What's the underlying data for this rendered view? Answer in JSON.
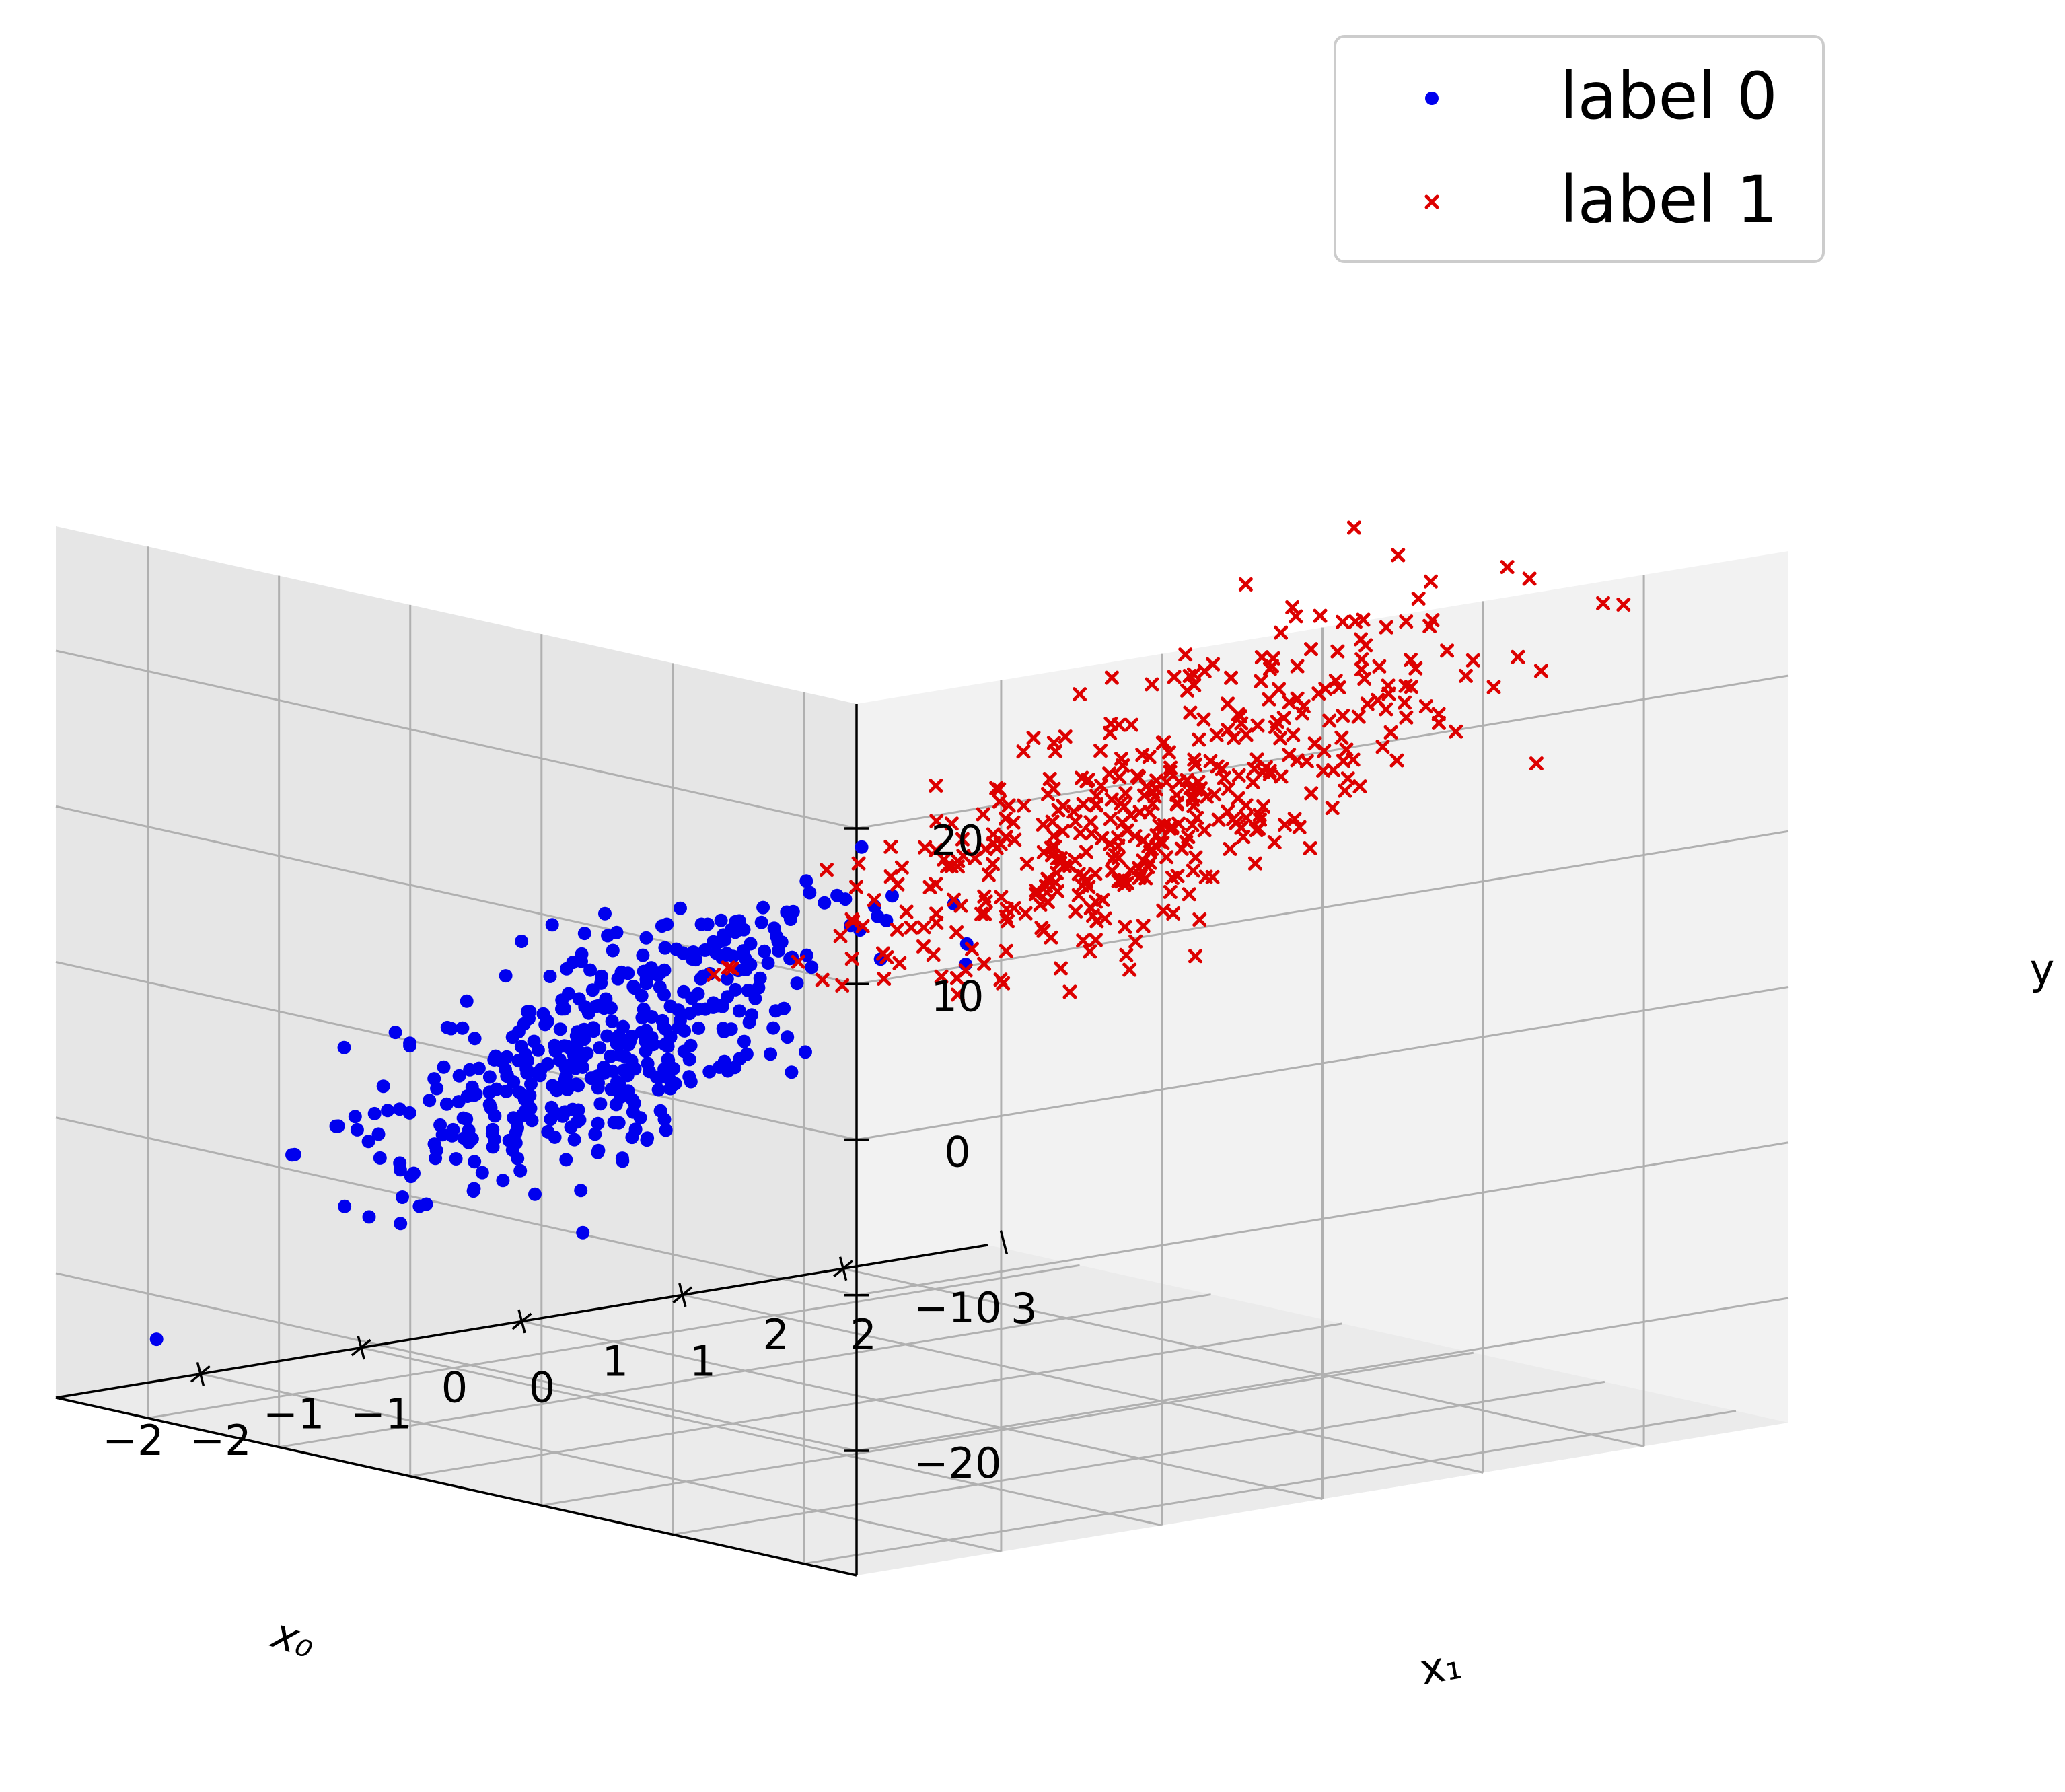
{
  "chart_data": {
    "type": "scatter",
    "projection": "3d",
    "title": "",
    "axes": {
      "x0": {
        "label": "x₀",
        "ticks": [
          -2,
          -1,
          0,
          1,
          2
        ],
        "tick_labels": [
          "−2",
          "−1",
          "0",
          "1",
          "2"
        ],
        "range": [
          -2.9,
          2.9
        ]
      },
      "x1": {
        "label": "x₁",
        "ticks": [
          -2,
          -1,
          0,
          1,
          2,
          3
        ],
        "tick_labels": [
          "−2",
          "−1",
          "0",
          "1",
          "2",
          "3"
        ],
        "range": [
          -2.7,
          3.4
        ]
      },
      "y": {
        "label": "y",
        "ticks": [
          -20,
          -10,
          0,
          10,
          20
        ],
        "tick_labels": [
          "−20",
          "−10",
          "0",
          "10",
          "20"
        ],
        "range": [
          -28,
          28
        ]
      }
    },
    "grid": true,
    "legend": {
      "position": "top-right"
    },
    "series": [
      {
        "name": "label 0",
        "marker": "circle",
        "color": "#0000ee",
        "center": {
          "x0": -0.7,
          "x1": -1.1,
          "y": -5.5
        },
        "spread": {
          "x0": 0.65,
          "x1": 0.55,
          "y": 3.5
        },
        "count": 420,
        "slope": 7.5,
        "y_max": 2.5,
        "notable_points": [
          [
            -2.6,
            -2.3,
            -24
          ],
          [
            0.4,
            0.2,
            1
          ]
        ]
      },
      {
        "name": "label 1",
        "marker": "x",
        "color": "#dd0000",
        "center": {
          "x0": 0.9,
          "x1": 1.0,
          "y": 10.5
        },
        "spread": {
          "x0": 0.7,
          "x1": 0.65,
          "y": 4.0
        },
        "count": 420,
        "slope": 7.5,
        "y_min": 1.0,
        "notable_points": [
          [
            0.1,
            -0.3,
            2
          ],
          [
            2.2,
            3.0,
            25
          ],
          [
            2.4,
            2.6,
            24
          ]
        ]
      }
    ]
  }
}
